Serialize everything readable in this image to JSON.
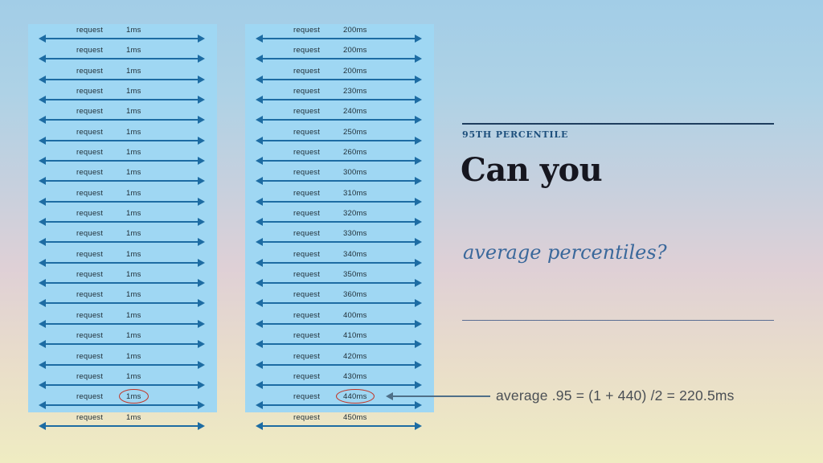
{
  "slide": {
    "panels": [
      {
        "id": "left",
        "row_label": "request",
        "values": [
          "1ms",
          "1ms",
          "1ms",
          "1ms",
          "1ms",
          "1ms",
          "1ms",
          "1ms",
          "1ms",
          "1ms",
          "1ms",
          "1ms",
          "1ms",
          "1ms",
          "1ms",
          "1ms",
          "1ms",
          "1ms",
          "1ms",
          "1ms"
        ],
        "circled_index": 18
      },
      {
        "id": "right",
        "row_label": "request",
        "values": [
          "200ms",
          "200ms",
          "200ms",
          "230ms",
          "240ms",
          "250ms",
          "260ms",
          "300ms",
          "310ms",
          "320ms",
          "330ms",
          "340ms",
          "350ms",
          "360ms",
          "400ms",
          "410ms",
          "420ms",
          "430ms",
          "440ms",
          "450ms"
        ],
        "circled_index": 18
      }
    ],
    "aside": {
      "kicker": "95TH PERCENTILE",
      "title": "Can you",
      "subtitle": "average percentiles?"
    },
    "annotation": {
      "text": "average .95 = (1 + 440) /2 = 220.5ms"
    },
    "colors": {
      "panel_blue": "#9fd7f3",
      "arrow_blue": "#1d6ca3",
      "circle_red": "#c23527",
      "kicker_blue": "#1d4f7c",
      "subtitle_blue": "#3a689b",
      "title_dark": "#16161f"
    }
  }
}
